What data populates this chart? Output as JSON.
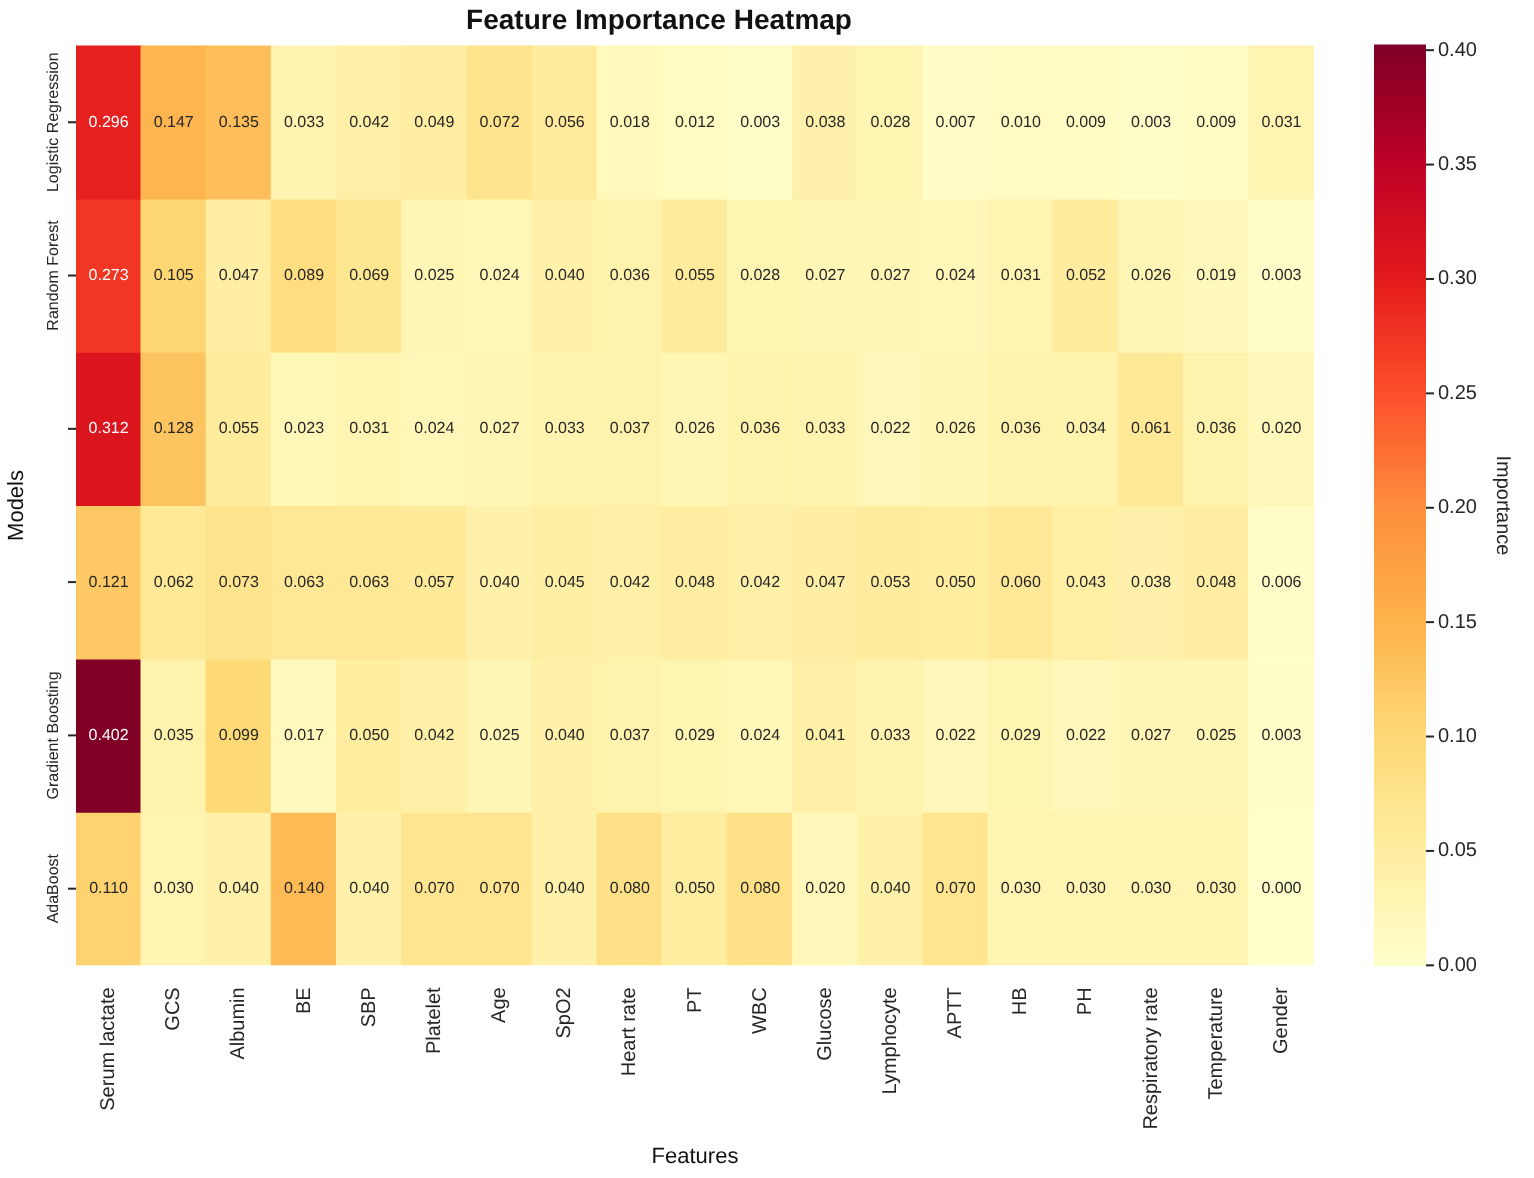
{
  "chart_data": {
    "type": "heatmap",
    "title": "Feature Importance Heatmap",
    "xlabel": "Features",
    "ylabel": "Models",
    "clabel": "Importance",
    "categories": [
      "Serum lactate",
      "GCS",
      "Albumin",
      "BE",
      "SBP",
      "Platelet",
      "Age",
      "SpO2",
      "Heart rate",
      "PT",
      "WBC",
      "Glucose",
      "Lymphocyte",
      "APTT",
      "HB",
      "PH",
      "Respiratory rate",
      "Temperature",
      "Gender"
    ],
    "y_categories": [
      "Logistic Regression",
      "Random Forest",
      null,
      null,
      "Gradient Boosting",
      "AdaBoost"
    ],
    "cells": [
      [
        0.296,
        0.147,
        0.135,
        0.033,
        0.042,
        0.049,
        0.072,
        0.056,
        0.018,
        0.012,
        0.003,
        0.038,
        0.028,
        0.007,
        0.01,
        0.009,
        0.003,
        0.009,
        0.031
      ],
      [
        0.273,
        0.105,
        0.047,
        0.089,
        0.069,
        0.025,
        0.024,
        0.04,
        0.036,
        0.055,
        0.028,
        0.027,
        0.027,
        0.024,
        0.031,
        0.052,
        0.026,
        0.019,
        0.003
      ],
      [
        0.312,
        0.128,
        0.055,
        0.023,
        0.031,
        0.024,
        0.027,
        0.033,
        0.037,
        0.026,
        0.036,
        0.033,
        0.022,
        0.026,
        0.036,
        0.034,
        0.061,
        0.036,
        0.02
      ],
      [
        0.121,
        0.062,
        0.073,
        0.063,
        0.063,
        0.057,
        0.04,
        0.045,
        0.042,
        0.048,
        0.042,
        0.047,
        0.053,
        0.05,
        0.06,
        0.043,
        0.038,
        0.048,
        0.006
      ],
      [
        0.402,
        0.035,
        0.099,
        0.017,
        0.05,
        0.042,
        0.025,
        0.04,
        0.037,
        0.029,
        0.024,
        0.041,
        0.033,
        0.022,
        0.029,
        0.022,
        0.027,
        0.025,
        0.003
      ],
      [
        0.11,
        0.03,
        0.04,
        0.14,
        0.04,
        0.07,
        0.07,
        0.04,
        0.08,
        0.05,
        0.08,
        0.02,
        0.04,
        0.07,
        0.03,
        0.03,
        0.03,
        0.03,
        0.0
      ]
    ],
    "cell_labels": [
      [
        "0.296",
        "0.147",
        "0.135",
        "0.033",
        "0.042",
        "0.049",
        "0.072",
        "0.056",
        "0.018",
        "0.012",
        "0.003",
        "0.038",
        "0.028",
        "0.007",
        "0.010",
        "0.009",
        "0.003",
        "0.009",
        "0.031"
      ],
      [
        "0.273",
        "0.105",
        "0.047",
        "0.089",
        "0.069",
        "0.025",
        "0.024",
        "0.040",
        "0.036",
        "0.055",
        "0.028",
        "0.027",
        "0.027",
        "0.024",
        "0.031",
        "0.052",
        "0.026",
        "0.019",
        "0.003"
      ],
      [
        "0.312",
        "0.128",
        "0.055",
        "0.023",
        "0.031",
        "0.024",
        "0.027",
        "0.033",
        "0.037",
        "0.026",
        "0.036",
        "0.033",
        "0.022",
        "0.026",
        "0.036",
        "0.034",
        "0.061",
        "0.036",
        "0.020"
      ],
      [
        "0.121",
        "0.062",
        "0.073",
        "0.063",
        "0.063",
        "0.057",
        "0.040",
        "0.045",
        "0.042",
        "0.048",
        "0.042",
        "0.047",
        "0.053",
        "0.050",
        "0.060",
        "0.043",
        "0.038",
        "0.048",
        "0.006"
      ],
      [
        "0.402",
        "0.035",
        "0.099",
        "0.017",
        "0.050",
        "0.042",
        "0.025",
        "0.040",
        "0.037",
        "0.029",
        "0.024",
        "0.041",
        "0.033",
        "0.022",
        "0.029",
        "0.022",
        "0.027",
        "0.025",
        "0.003"
      ],
      [
        "0.110",
        "0.030",
        "0.040",
        "0.140",
        "0.040",
        "0.070",
        "0.070",
        "0.040",
        "0.080",
        "0.050",
        "0.080",
        "0.020",
        "0.040",
        "0.070",
        "0.030",
        "0.030",
        "0.030",
        "0.030",
        "0.000"
      ]
    ],
    "clim": [
      0,
      0.402
    ],
    "cticks": [
      {
        "value": 0,
        "label": "0.00"
      },
      {
        "value": 0.05,
        "label": "0.05"
      },
      {
        "value": 0.1,
        "label": "0.10"
      },
      {
        "value": 0.15,
        "label": "0.15"
      },
      {
        "value": 0.2,
        "label": "0.20"
      },
      {
        "value": 0.25,
        "label": "0.25"
      },
      {
        "value": 0.3,
        "label": "0.30"
      },
      {
        "value": 0.35,
        "label": "0.35"
      },
      {
        "value": 0.4,
        "label": "0.40"
      }
    ]
  }
}
